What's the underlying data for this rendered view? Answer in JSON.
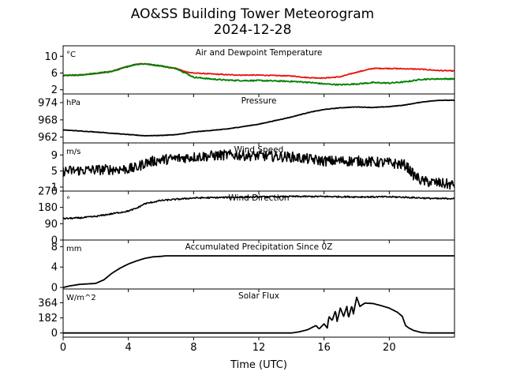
{
  "title": "AO&SS Building Tower Meteorogram",
  "subtitle": "2024-12-28",
  "xlabel": "Time (UTC)",
  "colors": {
    "axes": "#000000",
    "temperature": "#e8140c",
    "dewpoint": "#008000",
    "line": "#000000"
  },
  "chart_data": {
    "type": "line",
    "title": "AO&SS Building Tower Meteorogram",
    "subtitle": "2024-12-28",
    "xlabel": "Time (UTC)",
    "xlim": [
      0,
      24
    ],
    "xticks": [
      "0",
      "4",
      "8",
      "12",
      "16",
      "20"
    ],
    "grid": false,
    "panels": [
      {
        "id": "temp",
        "title": "Air and Dewpoint Temperature",
        "unit": "°C",
        "ylim": [
          1,
          12.5
        ],
        "yticks": [
          2,
          6,
          10
        ],
        "series": [
          {
            "color_key": "temperature",
            "noise": 0.1,
            "points": [
              [
                0,
                5.4
              ],
              [
                1,
                5.5
              ],
              [
                2,
                5.9
              ],
              [
                3,
                6.4
              ],
              [
                4,
                7.6
              ],
              [
                4.5,
                8.1
              ],
              [
                5,
                8.2
              ],
              [
                6,
                7.7
              ],
              [
                7,
                7.0
              ],
              [
                7.5,
                6.3
              ],
              [
                8,
                6.0
              ],
              [
                9,
                5.8
              ],
              [
                10,
                5.6
              ],
              [
                11,
                5.5
              ],
              [
                12,
                5.5
              ],
              [
                13,
                5.4
              ],
              [
                14,
                5.3
              ],
              [
                15,
                4.9
              ],
              [
                16,
                4.8
              ],
              [
                17,
                5.1
              ],
              [
                18,
                6.2
              ],
              [
                19,
                7.1
              ],
              [
                20,
                7.1
              ],
              [
                21,
                7.0
              ],
              [
                22,
                6.9
              ],
              [
                23,
                6.6
              ],
              [
                24,
                6.5
              ]
            ]
          },
          {
            "color_key": "dewpoint",
            "noise": 0.15,
            "points": [
              [
                0,
                5.4
              ],
              [
                1,
                5.5
              ],
              [
                2,
                5.9
              ],
              [
                3,
                6.4
              ],
              [
                4,
                7.6
              ],
              [
                4.5,
                8.1
              ],
              [
                5,
                8.2
              ],
              [
                6,
                7.7
              ],
              [
                7,
                7.0
              ],
              [
                7.5,
                6.0
              ],
              [
                8,
                5.0
              ],
              [
                9,
                4.6
              ],
              [
                10,
                4.3
              ],
              [
                11,
                4.2
              ],
              [
                12,
                4.2
              ],
              [
                13,
                4.1
              ],
              [
                14,
                4.0
              ],
              [
                15,
                3.8
              ],
              [
                16,
                3.4
              ],
              [
                17,
                3.2
              ],
              [
                18,
                3.4
              ],
              [
                19,
                3.7
              ],
              [
                20,
                3.6
              ],
              [
                21,
                3.9
              ],
              [
                22,
                4.5
              ],
              [
                23,
                4.6
              ],
              [
                24,
                4.6
              ]
            ]
          }
        ]
      },
      {
        "id": "pressure",
        "title": "Pressure",
        "unit": "hPa",
        "ylim": [
          960,
          977
        ],
        "yticks": [
          962,
          968,
          974
        ],
        "series": [
          {
            "color_key": "line",
            "noise": 0.08,
            "points": [
              [
                0,
                964.5
              ],
              [
                2,
                963.8
              ],
              [
                4,
                962.9
              ],
              [
                5,
                962.5
              ],
              [
                6,
                962.6
              ],
              [
                7,
                962.9
              ],
              [
                8,
                963.8
              ],
              [
                10,
                964.8
              ],
              [
                12,
                966.5
              ],
              [
                14,
                969.0
              ],
              [
                15,
                970.5
              ],
              [
                16,
                971.6
              ],
              [
                17,
                972.2
              ],
              [
                18,
                972.5
              ],
              [
                19,
                972.3
              ],
              [
                20,
                972.6
              ],
              [
                21,
                973.2
              ],
              [
                22,
                974.2
              ],
              [
                23,
                974.8
              ],
              [
                24,
                974.8
              ]
            ]
          }
        ]
      },
      {
        "id": "wind-speed",
        "title": "Wind Speed",
        "unit": "m/s",
        "ylim": [
          0,
          12
        ],
        "yticks": [
          1,
          5,
          9
        ],
        "series": [
          {
            "color_key": "line",
            "noise": 1.3,
            "points": [
              [
                0,
                5.0
              ],
              [
                2,
                5.3
              ],
              [
                4,
                5.5
              ],
              [
                4.5,
                5.8
              ],
              [
                5,
                7.0
              ],
              [
                6,
                7.8
              ],
              [
                8,
                8.5
              ],
              [
                10,
                9.0
              ],
              [
                12,
                8.8
              ],
              [
                14,
                8.5
              ],
              [
                16,
                7.5
              ],
              [
                18,
                7.5
              ],
              [
                20,
                7.0
              ],
              [
                21,
                6.5
              ],
              [
                21.5,
                4.0
              ],
              [
                22,
                2.5
              ],
              [
                23,
                2.0
              ],
              [
                24,
                1.5
              ]
            ]
          }
        ]
      },
      {
        "id": "wind-dir",
        "title": "Wind Direction",
        "unit": "°",
        "ylim": [
          0,
          270
        ],
        "yticks": [
          0,
          90,
          180,
          270
        ],
        "series": [
          {
            "color_key": "line",
            "noise": 4,
            "points": [
              [
                0,
                118
              ],
              [
                1,
                122
              ],
              [
                2,
                130
              ],
              [
                3,
                145
              ],
              [
                4,
                160
              ],
              [
                4.5,
                175
              ],
              [
                5,
                200
              ],
              [
                6,
                218
              ],
              [
                7,
                225
              ],
              [
                8,
                232
              ],
              [
                10,
                235
              ],
              [
                12,
                238
              ],
              [
                14,
                240
              ],
              [
                16,
                240
              ],
              [
                18,
                238
              ],
              [
                20,
                238
              ],
              [
                21,
                236
              ],
              [
                22,
                232
              ],
              [
                23,
                228
              ],
              [
                24,
                230
              ]
            ]
          }
        ]
      },
      {
        "id": "precip",
        "title": "Accumulated Precipitation Since 0Z",
        "unit": "mm",
        "ylim": [
          -0.3,
          9.3
        ],
        "yticks": [
          0,
          4,
          8
        ],
        "series": [
          {
            "color_key": "line",
            "noise": 0,
            "step": true,
            "points": [
              [
                0,
                0
              ],
              [
                0.4,
                0.3
              ],
              [
                1,
                0.6
              ],
              [
                2,
                0.8
              ],
              [
                2.5,
                1.5
              ],
              [
                3,
                2.8
              ],
              [
                3.5,
                3.8
              ],
              [
                4,
                4.6
              ],
              [
                4.5,
                5.2
              ],
              [
                5,
                5.7
              ],
              [
                5.5,
                6.0
              ],
              [
                6,
                6.1
              ],
              [
                6.3,
                6.2
              ],
              [
                24,
                6.2
              ]
            ]
          }
        ]
      },
      {
        "id": "solar",
        "title": "Solar Flux",
        "unit": "W/m^2",
        "ylim": [
          -50,
          530
        ],
        "yticks": [
          0,
          182,
          364
        ],
        "series": [
          {
            "color_key": "line",
            "noise": 0,
            "points": [
              [
                0,
                0
              ],
              [
                14,
                0
              ],
              [
                14.5,
                15
              ],
              [
                15,
                40
              ],
              [
                15.5,
                90
              ],
              [
                15.7,
                50
              ],
              [
                16,
                110
              ],
              [
                16.2,
                60
              ],
              [
                16.3,
                200
              ],
              [
                16.5,
                150
              ],
              [
                16.7,
                270
              ],
              [
                16.8,
                140
              ],
              [
                17,
                300
              ],
              [
                17.2,
                200
              ],
              [
                17.4,
                320
              ],
              [
                17.5,
                180
              ],
              [
                17.7,
                330
              ],
              [
                17.8,
                230
              ],
              [
                18,
                430
              ],
              [
                18.2,
                320
              ],
              [
                18.5,
                360
              ],
              [
                19,
                355
              ],
              [
                19.5,
                330
              ],
              [
                20,
                300
              ],
              [
                20.5,
                250
              ],
              [
                20.8,
                200
              ],
              [
                21,
                90
              ],
              [
                21.2,
                60
              ],
              [
                21.5,
                30
              ],
              [
                22,
                5
              ],
              [
                22.5,
                0
              ],
              [
                24,
                0
              ]
            ]
          }
        ]
      }
    ]
  }
}
